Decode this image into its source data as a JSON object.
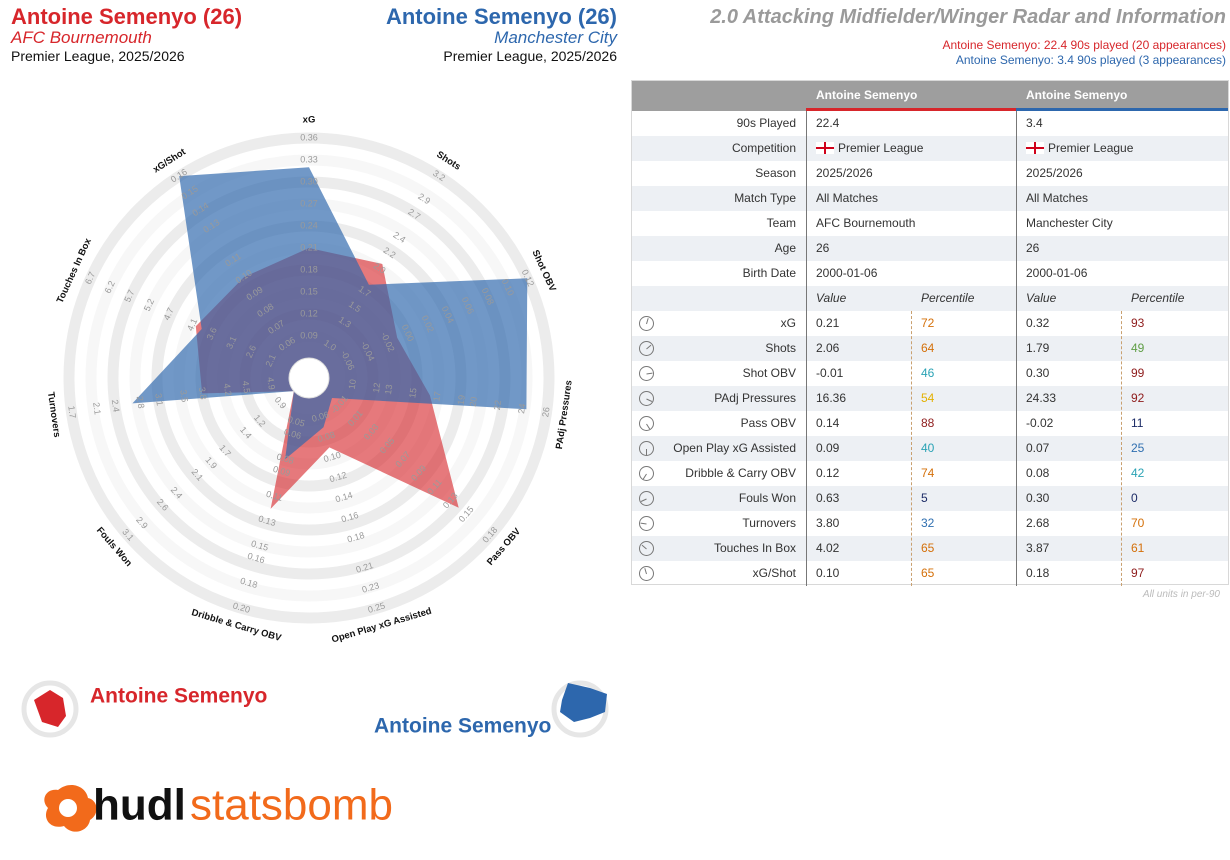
{
  "header": {
    "left": {
      "title": "Antoine Semenyo (26)",
      "team": "AFC Bournemouth",
      "league": "Premier League, 2025/2026"
    },
    "middle": {
      "title": "Antoine Semenyo (26)",
      "team": "Manchester City",
      "league": "Premier League, 2025/2026"
    },
    "radar_title": "2.0 Attacking Midfielder/Winger Radar and Information",
    "info_lines": [
      "Antoine Semenyo: 22.4 90s played (20 appearances)",
      "Antoine Semenyo: 3.4 90s played (3 appearances)"
    ]
  },
  "chart_data": {
    "type": "radar",
    "categories": [
      "xG",
      "Shots",
      "Shot OBV",
      "PAdj Pressures",
      "Pass OBV",
      "Open Play xG Assisted",
      "Dribble & Carry OBV",
      "Fouls Won",
      "Turnovers",
      "Touches In Box",
      "xG/Shot"
    ],
    "series": [
      {
        "name": "Antoine Semenyo",
        "color": "#d7262b",
        "values": [
          0.21,
          2.06,
          -0.01,
          16.36,
          0.14,
          0.09,
          0.12,
          0.63,
          3.8,
          4.02,
          0.1
        ]
      },
      {
        "name": "Antoine Semenyo",
        "color": "#2d67ad",
        "values": [
          0.32,
          1.79,
          0.3,
          24.33,
          -0.02,
          0.07,
          0.08,
          0.3,
          2.68,
          3.87,
          0.18
        ]
      }
    ],
    "axes": [
      {
        "lim": [
          0.06,
          0.36
        ],
        "ticks": [
          0.09,
          0.12,
          0.15,
          0.18,
          0.21,
          0.24,
          0.27,
          {
            "value": 0.3,
            "label": "0.30"
          },
          0.33,
          0.36
        ]
      },
      {
        "lim": [
          0.8,
          3.2
        ],
        "ticks": [
          {
            "value": 1,
            "label": "1.0"
          },
          1.3,
          1.5,
          1.7,
          {
            "value": 2,
            "label": "2.0"
          },
          2.2,
          2.4,
          2.7,
          2.9,
          3.2
        ]
      },
      {
        "lim": [
          -0.08,
          0.12
        ],
        "ticks": [
          -0.06,
          -0.04,
          -0.02,
          {
            "value": 0,
            "label": "0.00"
          },
          0.02,
          0.04,
          0.06,
          0.08,
          {
            "value": 0.1,
            "label": "0.10"
          },
          0.12
        ]
      },
      {
        "lim": [
          8,
          26
        ],
        "ticks": [
          10,
          12,
          13,
          15,
          17,
          19,
          20,
          22,
          24,
          26
        ]
      },
      {
        "lim": [
          -0.03,
          0.18
        ],
        "ticks": [
          -0.01,
          0.01,
          0.03,
          0.05,
          0.07,
          0.09,
          0.11,
          0.13,
          0.15,
          0.18
        ]
      },
      {
        "lim": [
          0.04,
          0.25
        ],
        "ticks": [
          0.06,
          0.08,
          {
            "value": 0.1,
            "label": "0.10"
          },
          0.12,
          0.14,
          0.16,
          0.18,
          0.21,
          0.23,
          0.25
        ]
      },
      {
        "lim": [
          0.03,
          0.2
        ],
        "ticks": [
          0.05,
          0.06,
          0.08,
          0.09,
          0.11,
          0.13,
          0.15,
          0.16,
          0.18,
          {
            "value": 0.2,
            "label": "0.20"
          }
        ]
      },
      {
        "lim": [
          0.7,
          3.1
        ],
        "ticks": [
          0.9,
          1.2,
          1.4,
          1.7,
          1.9,
          2.1,
          2.4,
          2.6,
          2.9,
          3.1
        ]
      },
      {
        "lim": [
          5.2,
          1.7
        ],
        "ticks": [
          4.9,
          4.5,
          4.2,
          3.8,
          3.5,
          3.1,
          2.8,
          2.4,
          2.1,
          1.7
        ]
      },
      {
        "lim": [
          1.6,
          6.7
        ],
        "ticks": [
          2.1,
          2.6,
          3.1,
          3.6,
          4.1,
          4.7,
          5.2,
          5.7,
          6.2,
          6.7
        ]
      },
      {
        "lim": [
          0.05,
          0.16
        ],
        "ticks": [
          0.06,
          0.07,
          0.08,
          0.09,
          {
            "value": 0.1,
            "label": "0.10"
          },
          0.11,
          0.13,
          0.14,
          0.15,
          0.16
        ]
      }
    ]
  },
  "table": {
    "info_rows": [
      [
        "90s Played",
        "22.4",
        "3.4"
      ],
      [
        "Competition",
        "Premier League",
        "Premier League"
      ],
      [
        "Season",
        "2025/2026",
        "2025/2026"
      ],
      [
        "Match Type",
        "All Matches",
        "All Matches"
      ],
      [
        "Team",
        "AFC Bournemouth",
        "Manchester City"
      ],
      [
        "Age",
        "26",
        "26"
      ],
      [
        "Birth Date",
        "2000-01-06",
        "2000-01-06"
      ]
    ],
    "subheader": [
      "Value",
      "Percentile",
      "Value",
      "Percentile"
    ],
    "metric_rows": [
      [
        "xG",
        "0.21",
        "72",
        "0.32",
        "93"
      ],
      [
        "Shots",
        "2.06",
        "64",
        "1.79",
        "49"
      ],
      [
        "Shot OBV",
        "-0.01",
        "46",
        "0.30",
        "99"
      ],
      [
        "PAdj Pressures",
        "16.36",
        "54",
        "24.33",
        "92"
      ],
      [
        "Pass OBV",
        "0.14",
        "88",
        "-0.02",
        "11"
      ],
      [
        "Open Play xG Assisted",
        "0.09",
        "40",
        "0.07",
        "25"
      ],
      [
        "Dribble & Carry OBV",
        "0.12",
        "74",
        "0.08",
        "42"
      ],
      [
        "Fouls Won",
        "0.63",
        "5",
        "0.30",
        "0"
      ],
      [
        "Turnovers",
        "3.80",
        "32",
        "2.68",
        "70"
      ],
      [
        "Touches In Box",
        "4.02",
        "65",
        "3.87",
        "61"
      ],
      [
        "xG/Shot",
        "0.10",
        "65",
        "0.18",
        "97"
      ]
    ],
    "footnote": "All units in per-90"
  },
  "logo": {
    "part1": "hudl",
    "part2": "statsbomb"
  }
}
